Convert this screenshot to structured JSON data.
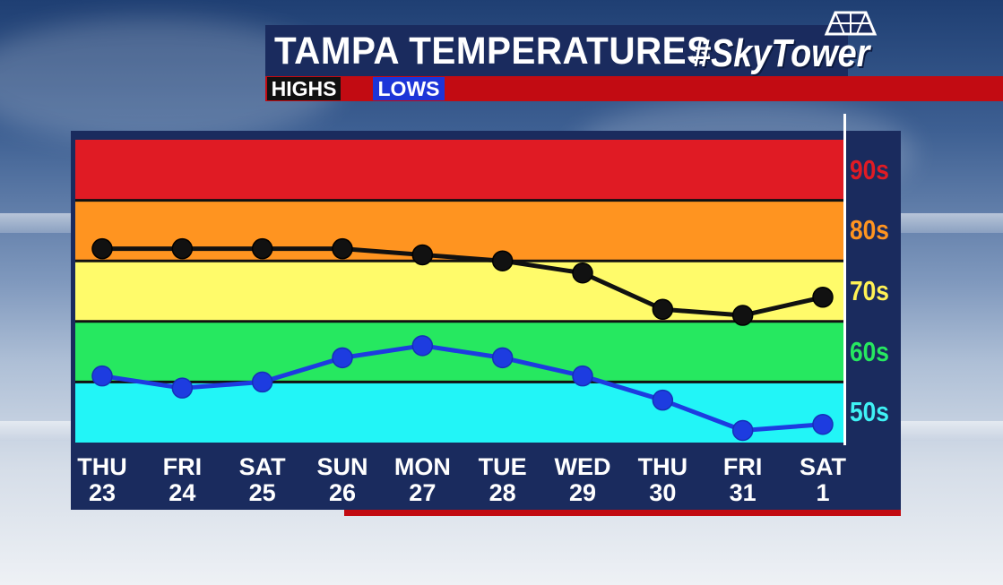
{
  "header": {
    "title": "TAMPA TEMPERATURES",
    "hashtag": "#SkyTower",
    "legend_highs": "HIGHS",
    "legend_lows": "LOWS"
  },
  "colors": {
    "band_90s": "#e01b24",
    "band_80s": "#ff9420",
    "band_70s": "#fffb6a",
    "band_60s": "#26e860",
    "band_50s": "#22f5f7",
    "highs_line": "#111111",
    "lows_line": "#1d3ce0",
    "label_90s": "#e01b24",
    "label_80s": "#ff9420",
    "label_70s": "#fff155",
    "label_60s": "#26e860",
    "label_50s": "#3ff2f5"
  },
  "bands": [
    {
      "label": "90s",
      "from": 90,
      "to": 100,
      "color_key": "band_90s",
      "label_color_key": "label_90s"
    },
    {
      "label": "80s",
      "from": 80,
      "to": 90,
      "color_key": "band_80s",
      "label_color_key": "label_80s"
    },
    {
      "label": "70s",
      "from": 70,
      "to": 80,
      "color_key": "band_70s",
      "label_color_key": "label_70s"
    },
    {
      "label": "60s",
      "from": 60,
      "to": 70,
      "color_key": "band_60s",
      "label_color_key": "label_60s"
    },
    {
      "label": "50s",
      "from": 50,
      "to": 60,
      "color_key": "band_50s",
      "label_color_key": "label_50s"
    }
  ],
  "chart_data": {
    "type": "line",
    "title": "TAMPA TEMPERATURES",
    "categories": [
      {
        "day": "THU",
        "date": "23"
      },
      {
        "day": "FRI",
        "date": "24"
      },
      {
        "day": "SAT",
        "date": "25"
      },
      {
        "day": "SUN",
        "date": "26"
      },
      {
        "day": "MON",
        "date": "27"
      },
      {
        "day": "TUE",
        "date": "28"
      },
      {
        "day": "WED",
        "date": "29"
      },
      {
        "day": "THU",
        "date": "30"
      },
      {
        "day": "FRI",
        "date": "31"
      },
      {
        "day": "SAT",
        "date": "1"
      }
    ],
    "series": [
      {
        "name": "HIGHS",
        "values": [
          82,
          82,
          82,
          82,
          81,
          80,
          78,
          72,
          71,
          74
        ]
      },
      {
        "name": "LOWS",
        "values": [
          61,
          59,
          60,
          64,
          66,
          64,
          61,
          57,
          52,
          53
        ]
      }
    ],
    "ylim": [
      50,
      100
    ],
    "band_labels": [
      "90s",
      "80s",
      "70s",
      "60s",
      "50s"
    ],
    "grid": true
  }
}
